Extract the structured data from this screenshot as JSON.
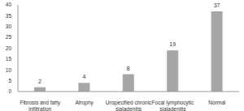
{
  "chart_data": {
    "type": "bar",
    "categories": [
      "Fibrosis and fatty infiltration",
      "Atrophy",
      "Unspecified chronic sialadenitis",
      "Focal lymphocytic sialadenitis",
      "Normal"
    ],
    "values": [
      2,
      4,
      8,
      19,
      37
    ],
    "color": "#a6a6a6",
    "ylim": [
      0,
      40
    ],
    "yticks": [
      0,
      5,
      10,
      15,
      20,
      25,
      30,
      35,
      40
    ],
    "grid": false,
    "data_labels": true
  }
}
